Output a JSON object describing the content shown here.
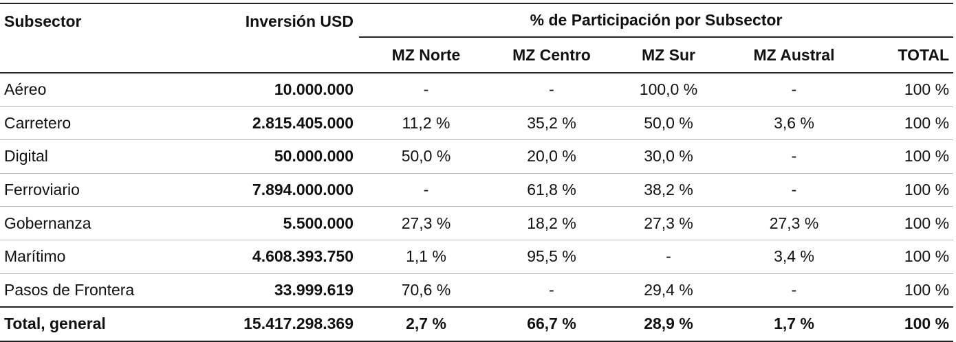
{
  "header": {
    "subsector": "Subsector",
    "investment": "Inversión USD",
    "share_group": "% de Participación por Subsector",
    "columns": [
      "MZ Norte",
      "MZ Centro",
      "MZ Sur",
      "MZ Austral",
      "TOTAL"
    ]
  },
  "rows": [
    {
      "subsector": "Aéreo",
      "investment": "10.000.000",
      "mz_norte": "-",
      "mz_centro": "-",
      "mz_sur": "100,0 %",
      "mz_austral": "-",
      "total": "100 %"
    },
    {
      "subsector": "Carretero",
      "investment": "2.815.405.000",
      "mz_norte": "11,2 %",
      "mz_centro": "35,2 %",
      "mz_sur": "50,0 %",
      "mz_austral": "3,6 %",
      "total": "100 %"
    },
    {
      "subsector": "Digital",
      "investment": "50.000.000",
      "mz_norte": "50,0 %",
      "mz_centro": "20,0 %",
      "mz_sur": "30,0 %",
      "mz_austral": "-",
      "total": "100 %"
    },
    {
      "subsector": "Ferroviario",
      "investment": "7.894.000.000",
      "mz_norte": "-",
      "mz_centro": "61,8 %",
      "mz_sur": "38,2 %",
      "mz_austral": "-",
      "total": "100 %"
    },
    {
      "subsector": "Gobernanza",
      "investment": "5.500.000",
      "mz_norte": "27,3 %",
      "mz_centro": "18,2 %",
      "mz_sur": "27,3 %",
      "mz_austral": "27,3 %",
      "total": "100 %"
    },
    {
      "subsector": "Marítimo",
      "investment": "4.608.393.750",
      "mz_norte": "1,1 %",
      "mz_centro": "95,5 %",
      "mz_sur": "-",
      "mz_austral": "3,4 %",
      "total": "100 %"
    },
    {
      "subsector": "Pasos de Frontera",
      "investment": "33.999.619",
      "mz_norte": "70,6 %",
      "mz_centro": "-",
      "mz_sur": "29,4 %",
      "mz_austral": "-",
      "total": "100 %"
    }
  ],
  "total_row": {
    "subsector": "Total, general",
    "investment": "15.417.298.369",
    "mz_norte": "2,7 %",
    "mz_centro": "66,7 %",
    "mz_sur": "28,9 %",
    "mz_austral": "1,7 %",
    "total": "100 %"
  }
}
